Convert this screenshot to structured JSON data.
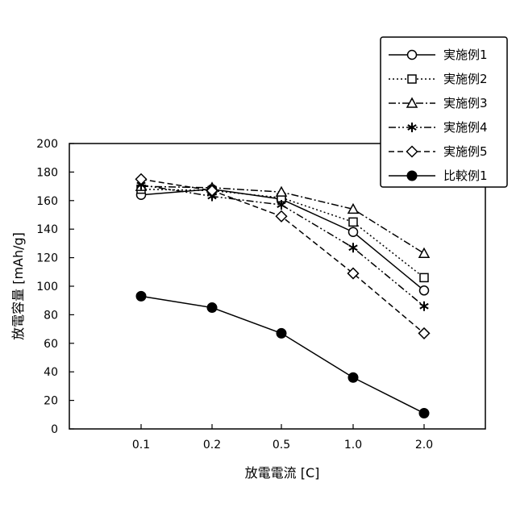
{
  "chart_data": {
    "type": "line",
    "xlabel": "放電電流 [C]",
    "ylabel": "放電容量 [mAh/g]",
    "categories": [
      "0.1",
      "0.2",
      "0.5",
      "1.0",
      "2.0"
    ],
    "y_ticks": [
      "0",
      "20",
      "40",
      "60",
      "80",
      "100",
      "120",
      "140",
      "160",
      "180",
      "200"
    ],
    "ylim": [
      0,
      200
    ],
    "grid": false,
    "legend_position": "top-right",
    "series": [
      {
        "name": "実施例1",
        "marker": "circle-open",
        "dash": "solid",
        "values": [
          164,
          168,
          161,
          138,
          97
        ]
      },
      {
        "name": "実施例2",
        "marker": "square-open",
        "dash": "dotted",
        "values": [
          168,
          167,
          162,
          145,
          106
        ]
      },
      {
        "name": "実施例3",
        "marker": "triangle-open",
        "dash": "dash-dot",
        "values": [
          170,
          169,
          166,
          154,
          123
        ]
      },
      {
        "name": "実施例4",
        "marker": "asterisk",
        "dash": "dash-dot-dot",
        "values": [
          171,
          163,
          157,
          127,
          86
        ]
      },
      {
        "name": "実施例5",
        "marker": "diamond-open",
        "dash": "dashed",
        "values": [
          175,
          167,
          149,
          109,
          67
        ]
      },
      {
        "name": "比較例1",
        "marker": "circle-filled",
        "dash": "solid",
        "values": [
          93,
          85,
          67,
          36,
          11
        ]
      }
    ]
  }
}
